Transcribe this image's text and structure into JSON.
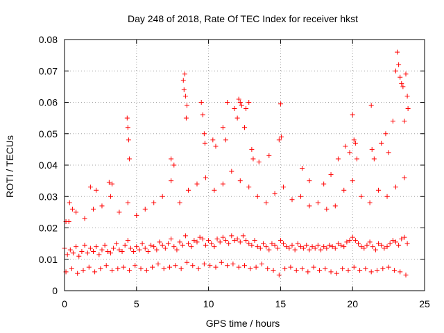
{
  "chart_data": {
    "type": "scatter",
    "title": "Day 248 of 2018, Rate Of TEC Index for receiver hkst",
    "xlabel": "GPS time / hours",
    "ylabel": "ROTI / TECUs",
    "xlim": [
      0,
      25
    ],
    "ylim": [
      0,
      0.08
    ],
    "xticks": [
      0,
      5,
      10,
      15,
      20,
      25
    ],
    "xtick_labels": [
      "0",
      "5",
      "10",
      "15",
      "20",
      "25"
    ],
    "yticks": [
      0,
      0.01,
      0.02,
      0.03,
      0.04,
      0.05,
      0.06,
      0.07,
      0.08
    ],
    "ytick_labels": [
      "0",
      "0.01",
      "0.02",
      "0.03",
      "0.04",
      "0.05",
      "0.06",
      "0.07",
      "0.08"
    ],
    "grid": true,
    "grid_style": "dotted",
    "legend": "none",
    "marker": "+",
    "color": "#ff0000",
    "series": [
      {
        "x": [
          0.0,
          0.2,
          0.4,
          0.6,
          0.8,
          1.0,
          1.2,
          1.4,
          1.6,
          1.8,
          2.0,
          2.2,
          2.4,
          2.6,
          2.8,
          3.0,
          3.2,
          3.4,
          3.6,
          3.8,
          4.0,
          4.2,
          4.4,
          4.6,
          4.8,
          5.0,
          5.2,
          5.4,
          5.6,
          5.8,
          6.0,
          6.2,
          6.4,
          6.6,
          6.8,
          7.0,
          7.2,
          7.4,
          7.6,
          7.8,
          8.0,
          8.2,
          8.4,
          8.6,
          8.8,
          9.0,
          9.2,
          9.4,
          9.6,
          9.8,
          10.0,
          10.2,
          10.4,
          10.6,
          10.8,
          11.0,
          11.2,
          11.4,
          11.6,
          11.8,
          12.0,
          12.2,
          12.4,
          12.6,
          12.8,
          13.0,
          13.2,
          13.4,
          13.6,
          13.8,
          14.0,
          14.2,
          14.4,
          14.6,
          14.8,
          15.0,
          15.2,
          15.4,
          15.6,
          15.8,
          16.0,
          16.2,
          16.4,
          16.6,
          16.8,
          17.0,
          17.2,
          17.4,
          17.6,
          17.8,
          18.0,
          18.2,
          18.4,
          18.6,
          18.8,
          19.0,
          19.2,
          19.4,
          19.6,
          19.8,
          20.0,
          20.2,
          20.4,
          20.6,
          20.8,
          21.0,
          21.2,
          21.4,
          21.6,
          21.8,
          22.0,
          22.2,
          22.4,
          22.6,
          22.8,
          23.0,
          23.2,
          23.4,
          23.6,
          23.8
        ],
        "y": [
          0.0135,
          0.0115,
          0.013,
          0.012,
          0.014,
          0.011,
          0.0125,
          0.0145,
          0.012,
          0.0135,
          0.0125,
          0.014,
          0.0115,
          0.013,
          0.0145,
          0.0125,
          0.012,
          0.0135,
          0.015,
          0.013,
          0.0125,
          0.0145,
          0.016,
          0.0135,
          0.0125,
          0.014,
          0.013,
          0.015,
          0.0135,
          0.0125,
          0.0145,
          0.014,
          0.013,
          0.0155,
          0.0145,
          0.0135,
          0.015,
          0.0165,
          0.014,
          0.013,
          0.0155,
          0.0145,
          0.0175,
          0.015,
          0.014,
          0.016,
          0.0155,
          0.017,
          0.0165,
          0.0145,
          0.016,
          0.015,
          0.014,
          0.0165,
          0.0155,
          0.017,
          0.016,
          0.015,
          0.0175,
          0.016,
          0.0165,
          0.0155,
          0.0175,
          0.016,
          0.015,
          0.0145,
          0.016,
          0.014,
          0.0135,
          0.015,
          0.014,
          0.013,
          0.015,
          0.0145,
          0.0135,
          0.016,
          0.015,
          0.014,
          0.0135,
          0.0145,
          0.013,
          0.015,
          0.014,
          0.0135,
          0.0145,
          0.013,
          0.014,
          0.0135,
          0.0145,
          0.013,
          0.014,
          0.0135,
          0.0145,
          0.014,
          0.0135,
          0.015,
          0.0145,
          0.014,
          0.0155,
          0.016,
          0.017,
          0.016,
          0.015,
          0.014,
          0.0135,
          0.0145,
          0.0155,
          0.014,
          0.013,
          0.015,
          0.0145,
          0.0135,
          0.014,
          0.015,
          0.016,
          0.0155,
          0.0145,
          0.0165,
          0.017,
          0.015
        ]
      },
      {
        "x": [
          0.1,
          0.5,
          0.9,
          1.3,
          1.7,
          2.1,
          2.5,
          2.9,
          3.3,
          3.7,
          4.1,
          4.5,
          4.9,
          5.3,
          5.7,
          6.1,
          6.5,
          6.9,
          7.3,
          7.7,
          8.1,
          8.5,
          8.9,
          9.3,
          9.7,
          10.1,
          10.5,
          10.9,
          11.3,
          11.7,
          12.1,
          12.5,
          12.9,
          13.3,
          13.7,
          14.1,
          14.5,
          14.9,
          15.3,
          15.7,
          16.1,
          16.5,
          16.9,
          17.3,
          17.7,
          18.1,
          18.5,
          18.9,
          19.3,
          19.7,
          20.1,
          20.5,
          20.9,
          21.3,
          21.7,
          22.1,
          22.5,
          22.9,
          23.3,
          23.7
        ],
        "y": [
          0.006,
          0.007,
          0.0055,
          0.0065,
          0.0075,
          0.006,
          0.007,
          0.008,
          0.0065,
          0.007,
          0.0075,
          0.0065,
          0.008,
          0.007,
          0.0065,
          0.0075,
          0.0085,
          0.007,
          0.0075,
          0.008,
          0.007,
          0.009,
          0.008,
          0.007,
          0.0085,
          0.008,
          0.0075,
          0.009,
          0.008,
          0.0085,
          0.0075,
          0.008,
          0.007,
          0.0075,
          0.0085,
          0.007,
          0.0065,
          0.005,
          0.007,
          0.0075,
          0.0065,
          0.007,
          0.006,
          0.0075,
          0.0065,
          0.007,
          0.006,
          0.0055,
          0.007,
          0.0065,
          0.0075,
          0.0065,
          0.007,
          0.006,
          0.0065,
          0.007,
          0.0075,
          0.0065,
          0.006,
          0.005
        ]
      },
      {
        "x": [
          0.3,
          0.8,
          1.4,
          2.0,
          2.6,
          3.2,
          3.8,
          4.4,
          5.0,
          5.6,
          6.2,
          6.8,
          7.4,
          8.0,
          8.6,
          9.2,
          9.8,
          10.4,
          11.0,
          11.6,
          12.2,
          12.8,
          13.4,
          14.0,
          14.6,
          15.2,
          15.8,
          16.4,
          17.0,
          17.6,
          18.2,
          18.8,
          19.4,
          20.0,
          20.6,
          21.2,
          21.8,
          22.4,
          23.0,
          23.6
        ],
        "y": [
          0.022,
          0.025,
          0.023,
          0.026,
          0.027,
          0.03,
          0.025,
          0.028,
          0.024,
          0.026,
          0.028,
          0.03,
          0.035,
          0.028,
          0.032,
          0.034,
          0.036,
          0.032,
          0.034,
          0.038,
          0.035,
          0.033,
          0.03,
          0.028,
          0.031,
          0.033,
          0.029,
          0.03,
          0.027,
          0.028,
          0.026,
          0.027,
          0.032,
          0.035,
          0.03,
          0.028,
          0.032,
          0.03,
          0.033,
          0.036
        ]
      },
      {
        "x": [
          0.1,
          0.35,
          0.55,
          1.8,
          2.2,
          3.1,
          3.3,
          4.35,
          4.4,
          4.45,
          4.5,
          7.4,
          7.6,
          8.25,
          8.3,
          8.35,
          8.4,
          8.45,
          8.5,
          9.5,
          9.6,
          9.7,
          9.75,
          10.3,
          10.5,
          11.0,
          11.2,
          11.3,
          11.8,
          12.0,
          12.1,
          12.2,
          12.3,
          12.5,
          12.6,
          12.8,
          13.0,
          13.1,
          13.5,
          14.2,
          14.9,
          15.0,
          15.05,
          16.5,
          17.0,
          18.0,
          18.5,
          19.0,
          19.5,
          19.8,
          20.0,
          20.1,
          20.2,
          20.3,
          21.3,
          21.35,
          21.5,
          22.0,
          22.3,
          22.5,
          22.8,
          23.0,
          23.1,
          23.2,
          23.3,
          23.4,
          23.5,
          23.6,
          23.7,
          23.8,
          23.85
        ],
        "y": [
          0.022,
          0.028,
          0.026,
          0.033,
          0.032,
          0.0345,
          0.034,
          0.055,
          0.052,
          0.048,
          0.042,
          0.042,
          0.04,
          0.067,
          0.064,
          0.069,
          0.062,
          0.055,
          0.059,
          0.06,
          0.056,
          0.05,
          0.047,
          0.048,
          0.046,
          0.052,
          0.048,
          0.06,
          0.058,
          0.055,
          0.061,
          0.06,
          0.059,
          0.052,
          0.058,
          0.06,
          0.045,
          0.042,
          0.041,
          0.043,
          0.048,
          0.0595,
          0.049,
          0.039,
          0.035,
          0.034,
          0.037,
          0.042,
          0.046,
          0.044,
          0.056,
          0.048,
          0.047,
          0.042,
          0.059,
          0.045,
          0.042,
          0.047,
          0.05,
          0.044,
          0.054,
          0.07,
          0.076,
          0.072,
          0.068,
          0.066,
          0.065,
          0.054,
          0.069,
          0.062,
          0.058
        ]
      }
    ]
  }
}
